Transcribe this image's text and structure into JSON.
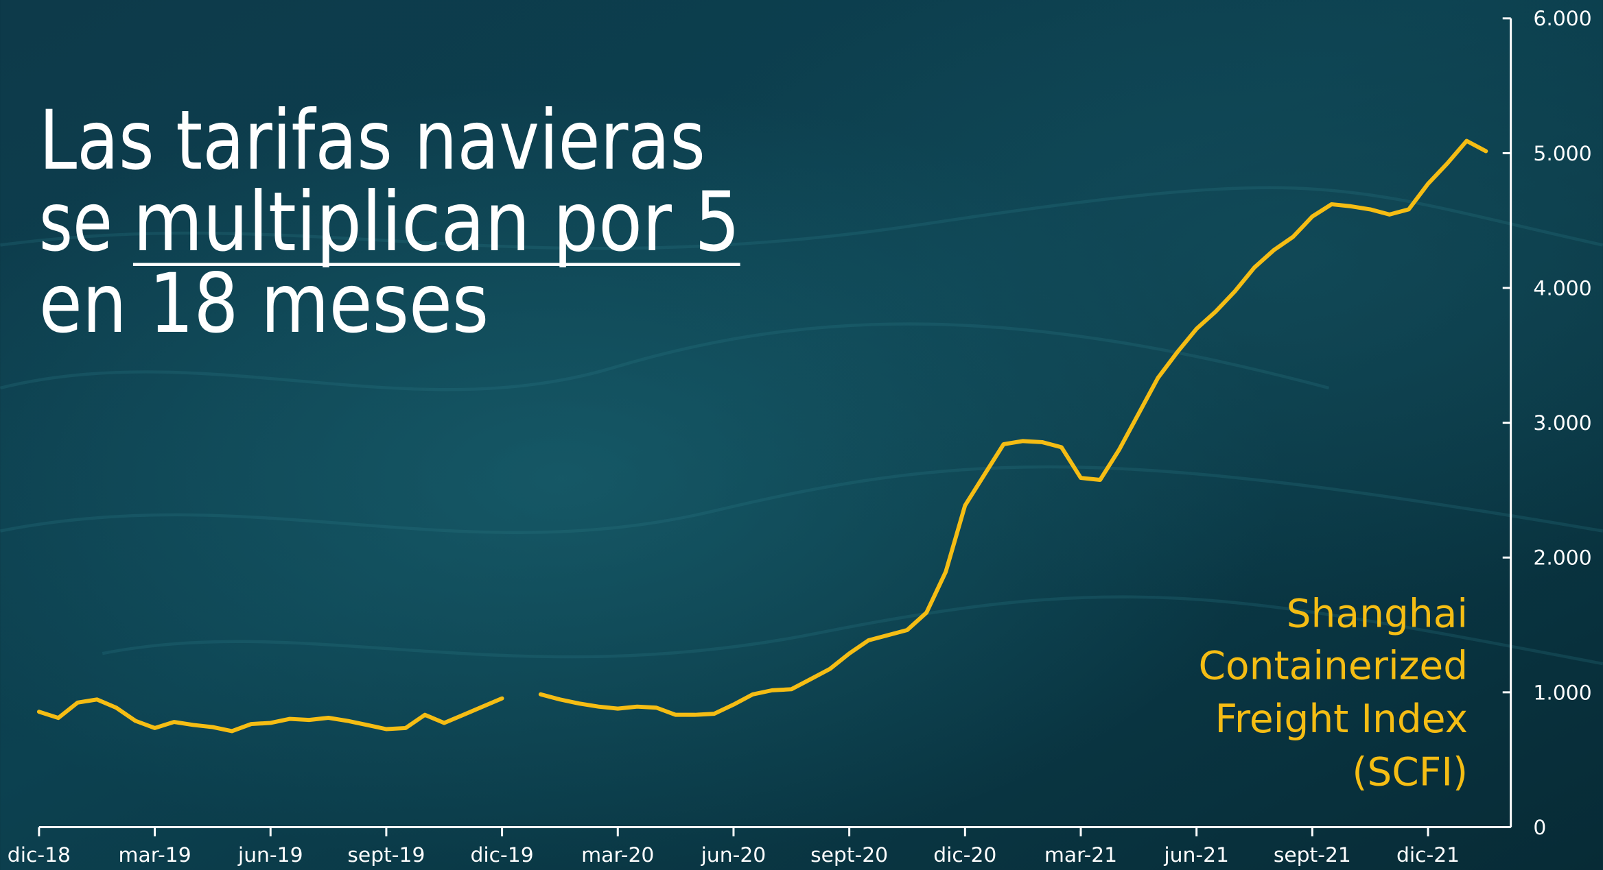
{
  "chart_data": {
    "type": "line",
    "title": [
      "Las tarifas navieras",
      "se",
      "multiplican por 5",
      "en 18 meses"
    ],
    "annotation": [
      "Shanghai",
      "Containerized",
      "Freight Index",
      "(SCFI)"
    ],
    "color": "#f5bd14",
    "categories": [
      "dic-18",
      null,
      null,
      null,
      null,
      null,
      "mar-19",
      null,
      null,
      null,
      null,
      null,
      "jun-19",
      null,
      null,
      null,
      null,
      null,
      "sept-19",
      null,
      null,
      null,
      null,
      null,
      "dic-19",
      null,
      null,
      null,
      null,
      null,
      "mar-20",
      null,
      null,
      null,
      null,
      null,
      "jun-20",
      null,
      null,
      null,
      null,
      null,
      "sept-20",
      null,
      null,
      null,
      null,
      null,
      "dic-20",
      null,
      null,
      null,
      null,
      null,
      "mar-21",
      null,
      null,
      null,
      null,
      null,
      "jun-21",
      null,
      null,
      null,
      null,
      null,
      "sept-21",
      null,
      null,
      null,
      null,
      null,
      "dic-21",
      null,
      null,
      null
    ],
    "values": [
      856,
      810,
      924,
      947,
      886,
      788,
      735,
      780,
      758,
      742,
      712,
      765,
      773,
      803,
      795,
      811,
      788,
      758,
      727,
      735,
      833,
      773,
      833,
      894,
      955,
      null,
      985,
      947,
      917,
      894,
      879,
      894,
      886,
      833,
      833,
      841,
      909,
      985,
      1015,
      1023,
      1098,
      1174,
      1288,
      1386,
      1424,
      1462,
      1591,
      1894,
      2386,
      2614,
      2841,
      2864,
      2856,
      2818,
      2591,
      2576,
      2803,
      3068,
      3333,
      3523,
      3697,
      3826,
      3977,
      4152,
      4280,
      4379,
      4530,
      4621,
      4606,
      4583,
      4545,
      4583,
      4773,
      4924,
      5091,
      5015
    ],
    "ylim": [
      0,
      6000
    ],
    "yticks": [
      0,
      {
        "value": 1000,
        "label": "1.000"
      },
      {
        "value": 2000,
        "label": "2.000"
      },
      {
        "value": 3000,
        "label": "3.000"
      },
      {
        "value": 4000,
        "label": "4.000"
      },
      {
        "value": 5000,
        "label": "5.000"
      },
      {
        "value": 6000,
        "label": "6.000"
      }
    ]
  }
}
